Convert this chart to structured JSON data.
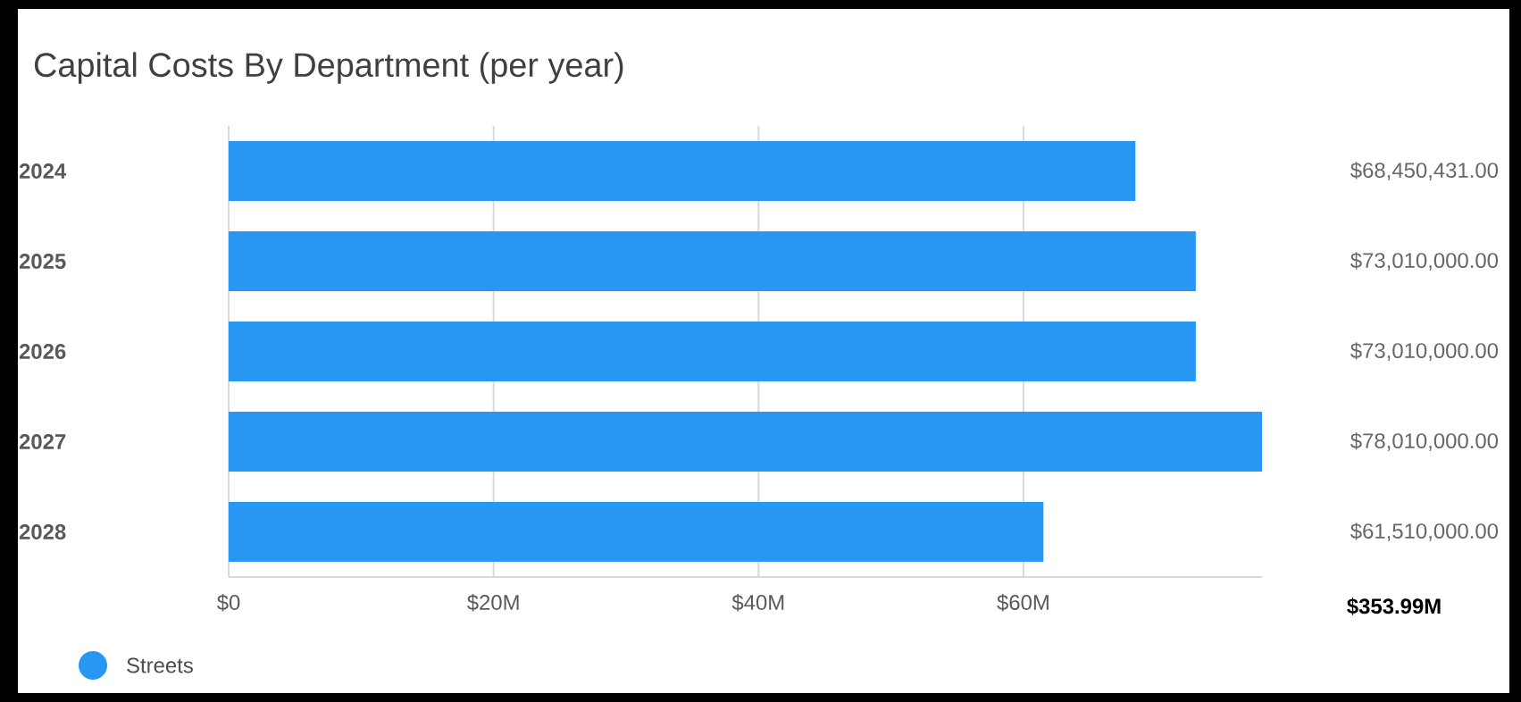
{
  "chart_data": {
    "type": "bar",
    "orientation": "horizontal",
    "title": "Capital Costs By Department (per year)",
    "categories": [
      "2024",
      "2025",
      "2026",
      "2027",
      "2028"
    ],
    "series": [
      {
        "name": "Streets",
        "color": "#2896f3",
        "values": [
          68450431,
          73010000,
          73010000,
          78010000,
          61510000
        ],
        "value_labels": [
          "$68,450,431.00",
          "$73,010,000.00",
          "$73,010,000.00",
          "$78,010,000.00",
          "$61,510,000.00"
        ]
      }
    ],
    "xlim": [
      0,
      78010000
    ],
    "xticks": [
      {
        "value": 0,
        "label": "$0"
      },
      {
        "value": 20000000,
        "label": "$20M"
      },
      {
        "value": 40000000,
        "label": "$40M"
      },
      {
        "value": 60000000,
        "label": "$60M"
      }
    ],
    "annotations": [
      "$353.99M"
    ],
    "grid": "x",
    "legend": "bottom left"
  }
}
